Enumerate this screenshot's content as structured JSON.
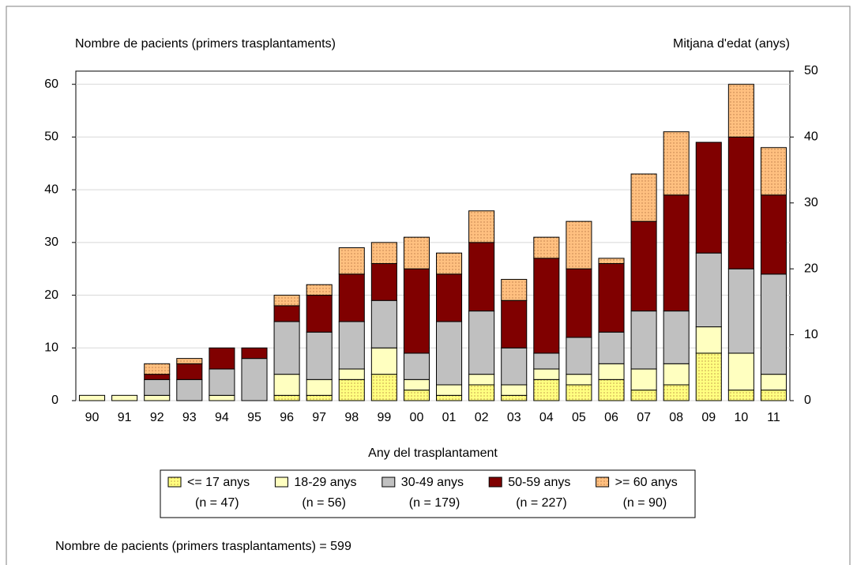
{
  "chart_data": {
    "type": "stacked-bar",
    "y_axis_label": "Nombre de pacients (primers trasplantaments)",
    "y2_axis_label": "Mitjana d'edat (anys)",
    "x_axis_label": "Any del trasplantament",
    "footnote": "Nombre de pacients (primers trasplantaments) = 599",
    "categories": [
      "90",
      "91",
      "92",
      "93",
      "94",
      "95",
      "96",
      "97",
      "98",
      "99",
      "00",
      "01",
      "02",
      "03",
      "04",
      "05",
      "06",
      "07",
      "08",
      "09",
      "10",
      "11"
    ],
    "ylim": [
      0,
      62.5
    ],
    "yticks": [
      0,
      10,
      20,
      30,
      40,
      50,
      60
    ],
    "y2lim": [
      0,
      50
    ],
    "y2ticks": [
      0,
      10,
      20,
      30,
      40,
      50
    ],
    "series": [
      {
        "name": "<= 17 anys",
        "n_label": "(n = 47)",
        "color": "#ffff80",
        "pattern": "dots",
        "values": [
          0,
          0,
          0,
          0,
          0,
          0,
          1,
          1,
          4,
          5,
          2,
          1,
          3,
          1,
          4,
          3,
          4,
          2,
          3,
          9,
          2,
          2
        ]
      },
      {
        "name": "18-29 anys",
        "n_label": "(n = 56)",
        "color": "#ffffc0",
        "pattern": "none",
        "values": [
          1,
          1,
          1,
          0,
          1,
          0,
          4,
          3,
          2,
          5,
          2,
          2,
          2,
          2,
          2,
          2,
          3,
          4,
          4,
          5,
          7,
          3
        ]
      },
      {
        "name": "30-49 anys",
        "n_label": "(n = 179)",
        "color": "#c0c0c0",
        "pattern": "none",
        "values": [
          0,
          0,
          3,
          4,
          5,
          8,
          10,
          9,
          9,
          9,
          5,
          12,
          12,
          7,
          3,
          7,
          6,
          11,
          10,
          14,
          16,
          19
        ]
      },
      {
        "name": "50-59 anys",
        "n_label": "(n = 227)",
        "color": "#800000",
        "pattern": "none",
        "values": [
          0,
          0,
          1,
          3,
          4,
          2,
          3,
          7,
          9,
          7,
          16,
          9,
          13,
          9,
          18,
          13,
          13,
          17,
          22,
          21,
          25,
          15
        ]
      },
      {
        "name": ">= 60 anys",
        "n_label": "(n = 90)",
        "color": "#ffc080",
        "pattern": "dots",
        "values": [
          0,
          0,
          2,
          1,
          0,
          0,
          2,
          2,
          5,
          4,
          6,
          4,
          6,
          4,
          4,
          9,
          1,
          9,
          12,
          0,
          10,
          9
        ]
      }
    ]
  }
}
